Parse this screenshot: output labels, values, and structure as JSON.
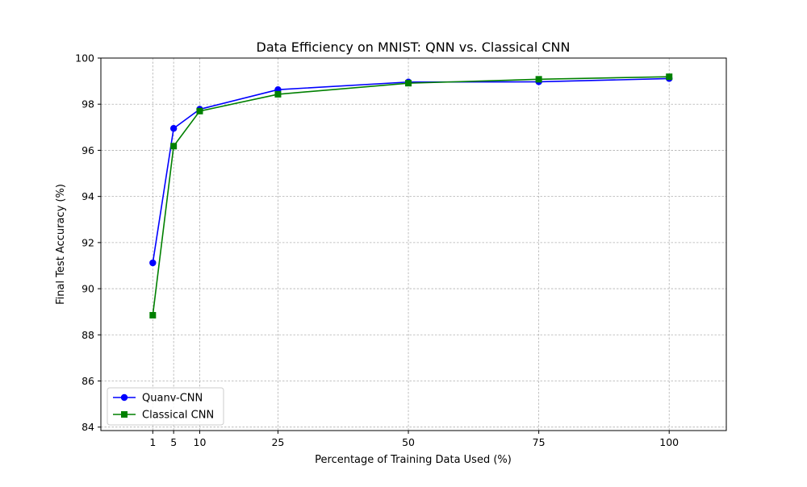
{
  "chart_data": {
    "type": "line",
    "title": "Data Efficiency on MNIST: QNN vs. Classical CNN",
    "xlabel": "Percentage of Training Data Used (%)",
    "ylabel": "Final Test Accuracy (%)",
    "xlim": [
      -8.95,
      110.95
    ],
    "ylim": [
      83.85,
      100
    ],
    "x": [
      1,
      5,
      10,
      25,
      50,
      75,
      100
    ],
    "xticks": [
      1,
      5,
      10,
      25,
      50,
      75,
      100
    ],
    "yticks": [
      84,
      86,
      88,
      90,
      92,
      94,
      96,
      98,
      100
    ],
    "grid": true,
    "legend_position": "lower-left",
    "series": [
      {
        "name": "Quanv-CNN",
        "color": "#0000ff",
        "marker": "circle",
        "values": [
          91.12,
          96.95,
          97.78,
          98.63,
          98.96,
          98.97,
          99.11
        ]
      },
      {
        "name": "Classical CNN",
        "color": "#008000",
        "marker": "square",
        "values": [
          88.85,
          96.18,
          97.7,
          98.43,
          98.91,
          99.08,
          99.19
        ]
      }
    ]
  }
}
